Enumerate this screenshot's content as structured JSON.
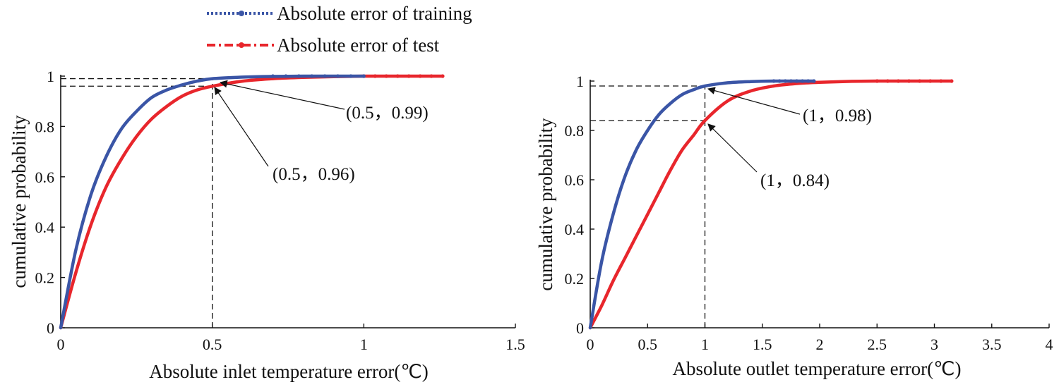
{
  "legend": {
    "placement": "top-left",
    "items": [
      {
        "label": "Absolute  error of training",
        "color": "#3a55a6",
        "style": "dotted"
      },
      {
        "label": "Absolute  error of test",
        "color": "#e8262c",
        "style": "dash-dot"
      }
    ]
  },
  "chart_data": [
    {
      "type": "line",
      "title": "",
      "xlabel": "Absolute inlet temperature error(℃)",
      "ylabel": "cumulative probability",
      "xlim": [
        0,
        1.5
      ],
      "ylim": [
        0,
        1
      ],
      "xticks": [
        0,
        0.5,
        1,
        1.5
      ],
      "xtick_labels": [
        "0",
        "0.5",
        "1",
        "1.5"
      ],
      "yticks": [
        0,
        0.2,
        0.4,
        0.6,
        0.8,
        1
      ],
      "ytick_labels": [
        "0",
        "0.2",
        "0.4",
        "0.6",
        "0.8",
        "1"
      ],
      "grid": false,
      "series": [
        {
          "name": "Absolute  error of training",
          "color": "#3a55a6",
          "x": [
            0,
            0.05,
            0.1,
            0.15,
            0.2,
            0.25,
            0.3,
            0.35,
            0.4,
            0.45,
            0.5,
            0.6,
            0.7,
            0.8,
            0.9,
            1.0
          ],
          "y": [
            0,
            0.31,
            0.53,
            0.68,
            0.79,
            0.86,
            0.915,
            0.945,
            0.965,
            0.98,
            0.99,
            0.996,
            0.999,
            1.0,
            1.0,
            1.0
          ]
        },
        {
          "name": "Absolute  error of test",
          "color": "#e8262c",
          "x": [
            0,
            0.05,
            0.1,
            0.15,
            0.2,
            0.25,
            0.3,
            0.35,
            0.4,
            0.45,
            0.5,
            0.6,
            0.7,
            0.8,
            0.9,
            1.0,
            1.1,
            1.26
          ],
          "y": [
            0,
            0.22,
            0.41,
            0.56,
            0.67,
            0.76,
            0.83,
            0.88,
            0.92,
            0.945,
            0.96,
            0.98,
            0.99,
            0.995,
            0.998,
            1.0,
            1.0,
            1.0
          ]
        }
      ],
      "reference_points": [
        {
          "x": 0.5,
          "y": 0.99,
          "label": "(0.5，0.99)"
        },
        {
          "x": 0.5,
          "y": 0.96,
          "label": "(0.5，0.96)"
        }
      ]
    },
    {
      "type": "line",
      "title": "",
      "xlabel": "Absolute outlet temperature error(℃)",
      "ylabel": "cumulative probability",
      "xlim": [
        0,
        4
      ],
      "ylim": [
        0,
        1
      ],
      "xticks": [
        0,
        0.5,
        1,
        1.5,
        2,
        2.5,
        3,
        3.5,
        4
      ],
      "xtick_labels": [
        "0",
        "0.5",
        "1",
        "1.5",
        "2",
        "2.5",
        "3",
        "3.5",
        "4"
      ],
      "yticks": [
        0,
        0.2,
        0.4,
        0.6,
        0.8,
        1
      ],
      "ytick_labels": [
        "0",
        "0.2",
        "0.4",
        "0.6",
        "0.8",
        "1"
      ],
      "grid": false,
      "series": [
        {
          "name": "Absolute  error of training",
          "color": "#3a55a6",
          "x": [
            0,
            0.1,
            0.2,
            0.3,
            0.4,
            0.5,
            0.6,
            0.7,
            0.8,
            0.9,
            1.0,
            1.2,
            1.4,
            1.6,
            1.8,
            1.95
          ],
          "y": [
            0,
            0.27,
            0.46,
            0.61,
            0.72,
            0.8,
            0.865,
            0.91,
            0.945,
            0.965,
            0.98,
            0.993,
            0.998,
            1.0,
            1.0,
            1.0
          ]
        },
        {
          "name": "Absolute  error of test",
          "color": "#e8262c",
          "x": [
            0,
            0.1,
            0.2,
            0.3,
            0.4,
            0.5,
            0.6,
            0.7,
            0.8,
            0.9,
            1.0,
            1.2,
            1.4,
            1.6,
            1.8,
            2.0,
            2.2,
            2.5,
            3.0,
            3.15
          ],
          "y": [
            0,
            0.09,
            0.19,
            0.28,
            0.37,
            0.46,
            0.55,
            0.64,
            0.72,
            0.78,
            0.84,
            0.92,
            0.96,
            0.98,
            0.99,
            0.995,
            0.998,
            1.0,
            1.0,
            1.0
          ]
        }
      ],
      "reference_points": [
        {
          "x": 1,
          "y": 0.98,
          "label": "(1，0.98)"
        },
        {
          "x": 1,
          "y": 0.84,
          "label": "(1，0.84)"
        }
      ]
    }
  ]
}
